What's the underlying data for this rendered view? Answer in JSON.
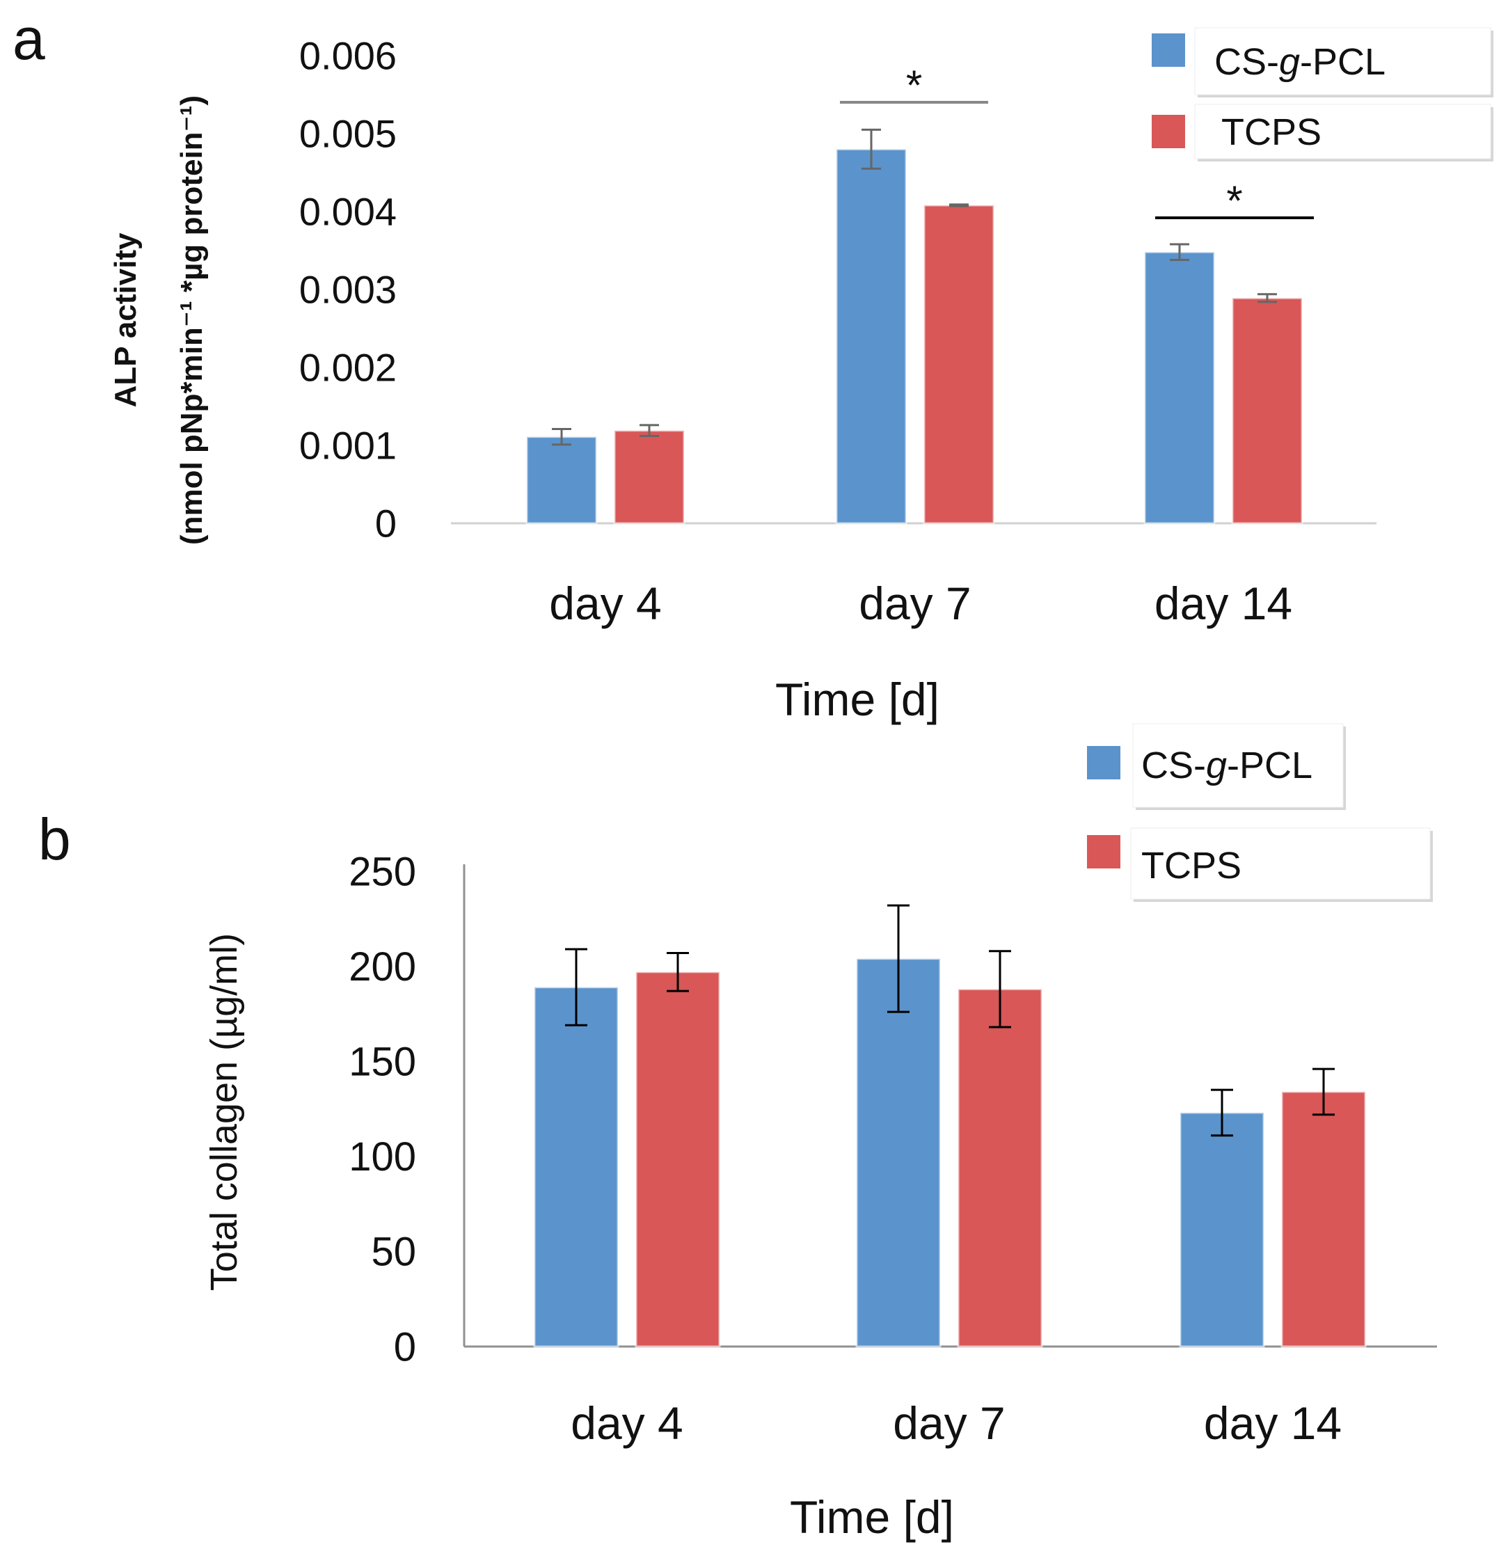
{
  "panel_a_label": "a",
  "panel_b_label": "b",
  "colors": {
    "csgpcl": "#5b93cc",
    "tcps": "#d95757",
    "axis": "#d0d0d0",
    "axis_b": "#909090"
  },
  "chart_data": [
    {
      "type": "bar",
      "panel": "a",
      "categories": [
        "day 4",
        "day 7",
        "day 14"
      ],
      "series": [
        {
          "name": "CS-g-PCL",
          "name_parts": [
            "CS-",
            "g",
            "-PCL"
          ],
          "values": [
            0.00111,
            0.0048,
            0.00348
          ],
          "errors": [
            0.0001,
            0.00025,
            0.0001
          ]
        },
        {
          "name": "TCPS",
          "values": [
            0.00119,
            0.00408,
            0.00289
          ],
          "errors": [
            7e-05,
            1e-05,
            5e-05
          ]
        }
      ],
      "ylim": [
        0,
        0.006
      ],
      "yticks": [
        "0",
        "0.001",
        "0.002",
        "0.003",
        "0.004",
        "0.005",
        "0.006"
      ],
      "ylabel_line1": "ALP activity",
      "ylabel_line2": "(nmol pNp*min⁻¹ *µg protein⁻¹)",
      "xlabel": "Time [d]",
      "significance": [
        {
          "category": "day 7",
          "label": "*"
        },
        {
          "category": "day 14",
          "label": "*"
        }
      ],
      "legend_position": "top-right"
    },
    {
      "type": "bar",
      "panel": "b",
      "categories": [
        "day 4",
        "day 7",
        "day 14"
      ],
      "series": [
        {
          "name": "CS-g-PCL",
          "name_parts": [
            "CS-",
            "g",
            "-PCL"
          ],
          "values": [
            189,
            204,
            123
          ],
          "errors": [
            20,
            28,
            12
          ]
        },
        {
          "name": "TCPS",
          "values": [
            197,
            188,
            134
          ],
          "errors": [
            10,
            20,
            12
          ]
        }
      ],
      "ylim": [
        0,
        250
      ],
      "yticks": [
        "0",
        "50",
        "100",
        "150",
        "200",
        "250"
      ],
      "ylabel": "Total collagen (µg/ml)",
      "xlabel": "Time [d]",
      "legend_position": "top-right"
    }
  ]
}
